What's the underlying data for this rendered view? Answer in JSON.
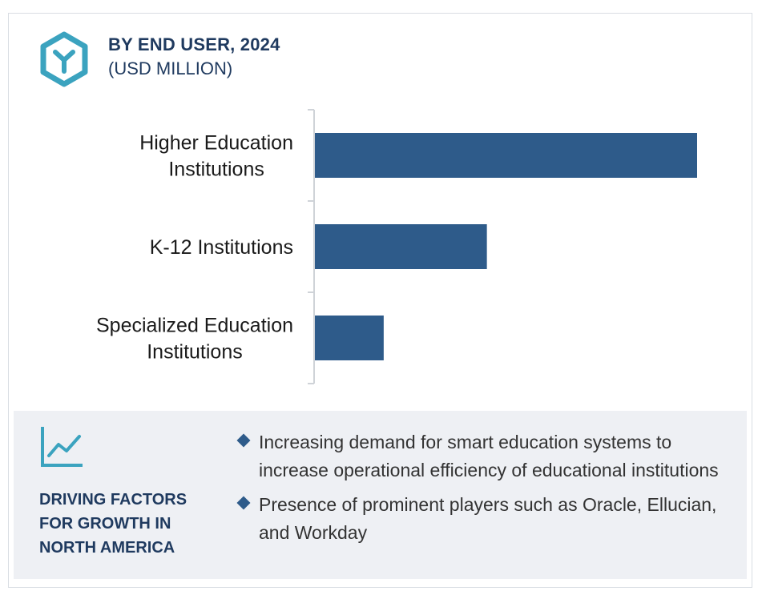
{
  "header": {
    "title": "BY END USER, 2024",
    "subtitle": "(USD MILLION)"
  },
  "colors": {
    "bar": "#2e5b8a",
    "accent": "#3ba3bf",
    "heading": "#1f3a5f",
    "panel_bg": "#eef0f4"
  },
  "chart_data": {
    "type": "bar",
    "orientation": "horizontal",
    "categories": [
      [
        "Higher Education",
        "Institutions"
      ],
      [
        "K-12 Institutions"
      ],
      [
        "Specialized Education",
        "Institutions"
      ]
    ],
    "values": [
      100,
      45,
      18
    ],
    "xlim": [
      0,
      100
    ],
    "grid": false,
    "legend": "none"
  },
  "panel": {
    "icon": "trend-line-chart-icon",
    "heading": "DRIVING FACTORS\nFOR GROWTH IN\nNORTH AMERICA",
    "bullets": [
      "Increasing demand for smart education systems to increase operational efficiency of educational institutions",
      "Presence of prominent players such as Oracle, Ellucian, and Workday"
    ]
  },
  "logo": {
    "icon": "hexagon-y-logo-icon"
  }
}
